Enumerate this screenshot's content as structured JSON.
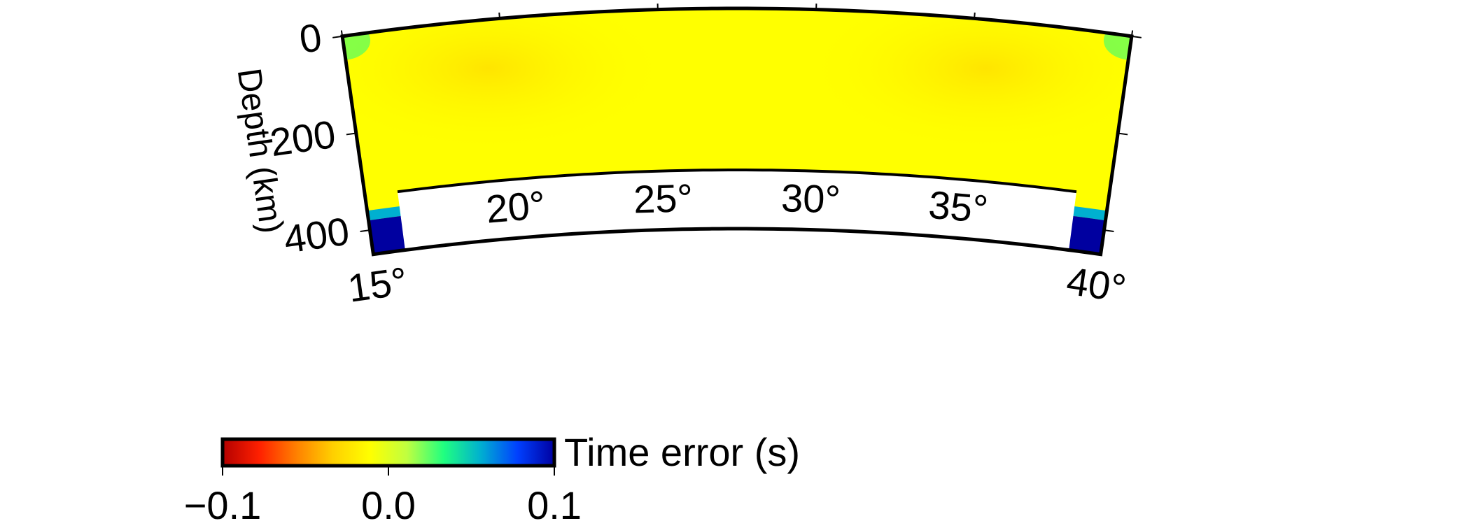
{
  "chart_data": {
    "type": "heatmap",
    "projection": "polar-cross-section",
    "x": {
      "ticks": [
        15,
        20,
        25,
        30,
        35,
        40
      ],
      "tick_labels": [
        "15°",
        "20°",
        "25°",
        "30°",
        "35°",
        "40°"
      ],
      "range": [
        15,
        40
      ]
    },
    "y": {
      "label": "Depth (km)",
      "ticks": [
        0,
        200,
        400
      ],
      "tick_labels": [
        "0",
        "200",
        "400"
      ],
      "range": [
        0,
        450
      ]
    },
    "field": {
      "background_value": 0.0,
      "slight_positive_anomalies": [
        {
          "x": 19.5,
          "depth": 100,
          "value": -0.01
        },
        {
          "x": 35.5,
          "depth": 100,
          "value": -0.01
        }
      ],
      "near_surface_edges_value": 0.03,
      "bottom_corner_value": 0.1,
      "bottom_corner_region": {
        "depth_from": 380,
        "depth_to": 450,
        "x_from": 15,
        "x_to": 40
      }
    },
    "colorbar": {
      "label": "Time error (s)",
      "range": [
        -0.1,
        0.1
      ],
      "ticks": [
        -0.1,
        0.0,
        0.1
      ],
      "tick_labels": [
        "−0.1",
        "0.0",
        "0.1"
      ],
      "colors": [
        "#b30000",
        "#ff2000",
        "#ff8000",
        "#ffd000",
        "#ffff00",
        "#c0ff40",
        "#20ff80",
        "#00b0d0",
        "#0040ff",
        "#0000a0"
      ]
    },
    "inner_boundary_depth": 330
  }
}
